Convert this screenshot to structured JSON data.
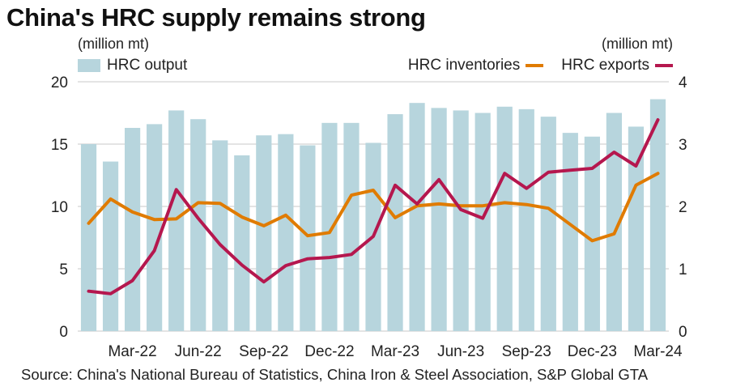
{
  "chart_data": {
    "type": "bar+line",
    "title": "China's HRC supply remains strong",
    "source": "Source: China's National Bureau of Statistics, China Iron & Steel Association, S&P Global GTA",
    "left_axis": {
      "unit": "(million mt)",
      "ylim": [
        0,
        20
      ],
      "ticks": [
        "0",
        "5",
        "10",
        "15",
        "20"
      ],
      "tick_values": [
        0,
        5,
        10,
        15,
        20
      ]
    },
    "right_axis": {
      "unit": "(million mt)",
      "ylim": [
        0,
        4
      ],
      "ticks": [
        "0",
        "1",
        "2",
        "3",
        "4"
      ],
      "tick_values": [
        0,
        1,
        2,
        3,
        4
      ]
    },
    "grid": true,
    "x": [
      "Jan-22",
      "Feb-22",
      "Mar-22",
      "Apr-22",
      "May-22",
      "Jun-22",
      "Jul-22",
      "Aug-22",
      "Sep-22",
      "Oct-22",
      "Nov-22",
      "Dec-22",
      "Jan-23",
      "Feb-23",
      "Mar-23",
      "Apr-23",
      "May-23",
      "Jun-23",
      "Jul-23",
      "Aug-23",
      "Sep-23",
      "Oct-23",
      "Nov-23",
      "Dec-23",
      "Jan-24",
      "Feb-24",
      "Mar-24"
    ],
    "x_tick_labels": [
      {
        "index": 2,
        "label": "Mar-22"
      },
      {
        "index": 5,
        "label": "Jun-22"
      },
      {
        "index": 8,
        "label": "Sep-22"
      },
      {
        "index": 11,
        "label": "Dec-22"
      },
      {
        "index": 14,
        "label": "Mar-23"
      },
      {
        "index": 17,
        "label": "Jun-23"
      },
      {
        "index": 20,
        "label": "Sep-23"
      },
      {
        "index": 23,
        "label": "Dec-23"
      },
      {
        "index": 26,
        "label": "Mar-24"
      }
    ],
    "series": [
      {
        "name": "HRC output",
        "type": "bar",
        "axis": "left",
        "color": "#b7d5dd",
        "legend": "top-left",
        "values": [
          15.0,
          13.6,
          16.3,
          16.6,
          17.7,
          17.0,
          15.3,
          14.1,
          15.7,
          15.8,
          14.9,
          16.7,
          16.7,
          15.1,
          17.4,
          18.3,
          17.9,
          17.7,
          17.5,
          18.0,
          17.8,
          17.2,
          15.9,
          15.6,
          17.5,
          16.4,
          18.6
        ]
      },
      {
        "name": "HRC inventories",
        "type": "line",
        "axis": "right",
        "color": "#e07b00",
        "legend": "top-right",
        "values": [
          1.73,
          2.12,
          1.91,
          1.79,
          1.8,
          2.06,
          2.05,
          1.83,
          1.69,
          1.86,
          1.53,
          1.58,
          2.18,
          2.26,
          1.82,
          2.01,
          2.04,
          2.01,
          2.01,
          2.06,
          2.03,
          1.97,
          1.71,
          1.45,
          1.56,
          2.34,
          2.53
        ]
      },
      {
        "name": "HRC exports",
        "type": "line",
        "axis": "right",
        "color": "#b5174e",
        "legend": "top-right",
        "values": [
          0.64,
          0.6,
          0.81,
          1.29,
          2.27,
          1.81,
          1.39,
          1.06,
          0.79,
          1.05,
          1.16,
          1.18,
          1.23,
          1.52,
          2.34,
          2.04,
          2.43,
          1.95,
          1.81,
          2.53,
          2.29,
          2.55,
          2.58,
          2.61,
          2.87,
          2.65,
          3.39
        ]
      }
    ]
  }
}
